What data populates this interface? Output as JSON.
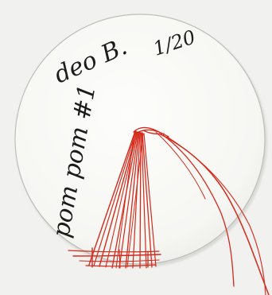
{
  "handwriting": {
    "label": "pom pom #1",
    "author": "deo B.",
    "date": "1/20"
  },
  "colors": {
    "background": "#f1f1ef",
    "card": "#fafaf8",
    "card_edge": "#bdbdb9",
    "thread": "#d42a1c",
    "ink": "#1c1c1c"
  }
}
